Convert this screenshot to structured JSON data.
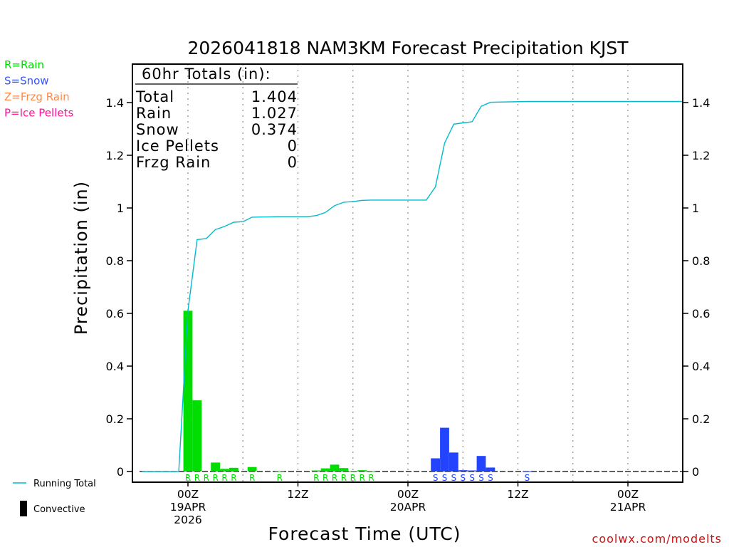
{
  "chart_data": {
    "type": "bar",
    "title": "2026041818 NAM3KM Forecast Precipitation KJST",
    "xlabel": "Forecast Time (UTC)",
    "ylabel": "Precipitation (in)",
    "ylim": [
      0,
      1.55
    ],
    "y_ticks": [
      {
        "value": 0,
        "label": "0"
      },
      {
        "value": 0.2,
        "label": "0.2"
      },
      {
        "value": 0.4,
        "label": "0.4"
      },
      {
        "value": 0.6,
        "label": "0.6"
      },
      {
        "value": 0.8,
        "label": "0.8"
      },
      {
        "value": 1.0,
        "label": "1"
      },
      {
        "value": 1.2,
        "label": "1.2"
      },
      {
        "value": 1.4,
        "label": "1.4"
      }
    ],
    "x_unit": "hours since 19APR 00Z",
    "xlim": [
      -6.2,
      54
    ],
    "x_ticks": [
      {
        "hour": 0,
        "lines": [
          "00Z",
          "19APR",
          "2026"
        ]
      },
      {
        "hour": 12,
        "lines": [
          "12Z"
        ]
      },
      {
        "hour": 24,
        "lines": [
          "00Z",
          "20APR"
        ]
      },
      {
        "hour": 36,
        "lines": [
          "12Z"
        ]
      },
      {
        "hour": 48,
        "lines": [
          "00Z",
          "21APR"
        ]
      }
    ],
    "grid": "vertical dotted at 6-hourly steps",
    "totals": {
      "header": "60hr Totals (in):",
      "rows": [
        {
          "label": "Total",
          "value": "1.404"
        },
        {
          "label": "Rain",
          "value": "1.027"
        },
        {
          "label": "Snow",
          "value": "0.374"
        },
        {
          "label": "Ice Pellets",
          "value": "0"
        },
        {
          "label": "Frzg Rain",
          "value": "0"
        }
      ]
    },
    "precip_type_legend": [
      {
        "label": "R=Rain",
        "color": "#00dd00"
      },
      {
        "label": "S=Snow",
        "color": "#3355ff"
      },
      {
        "label": "Z=Frzg Rain",
        "color": "#ff8844"
      },
      {
        "label": "P=Ice Pellets",
        "color": "#ff1493"
      }
    ],
    "series_legend": [
      {
        "label": "Running Total",
        "kind": "line",
        "color": "#00bbcc"
      },
      {
        "label": "Convective",
        "kind": "bar",
        "color": "#000000"
      }
    ],
    "bars": [
      {
        "hour": 0,
        "value": 0.61,
        "type": "rain"
      },
      {
        "hour": 1,
        "value": 0.27,
        "type": "rain"
      },
      {
        "hour": 2,
        "value": 0.0,
        "type": "rain"
      },
      {
        "hour": 3,
        "value": 0.034,
        "type": "rain"
      },
      {
        "hour": 4,
        "value": 0.01,
        "type": "rain"
      },
      {
        "hour": 5,
        "value": 0.014,
        "type": "rain"
      },
      {
        "hour": 7,
        "value": 0.017,
        "type": "rain"
      },
      {
        "hour": 10,
        "value": 0.002,
        "type": "rain"
      },
      {
        "hour": 14,
        "value": 0.004,
        "type": "rain"
      },
      {
        "hour": 15,
        "value": 0.012,
        "type": "rain"
      },
      {
        "hour": 16,
        "value": 0.026,
        "type": "rain"
      },
      {
        "hour": 17,
        "value": 0.013,
        "type": "rain"
      },
      {
        "hour": 18,
        "value": 0.002,
        "type": "rain"
      },
      {
        "hour": 19,
        "value": 0.005,
        "type": "rain"
      },
      {
        "hour": 20,
        "value": 0.002,
        "type": "rain"
      },
      {
        "hour": 27,
        "value": 0.05,
        "type": "snow"
      },
      {
        "hour": 28,
        "value": 0.166,
        "type": "snow"
      },
      {
        "hour": 29,
        "value": 0.072,
        "type": "snow"
      },
      {
        "hour": 30,
        "value": 0.005,
        "type": "snow"
      },
      {
        "hour": 31,
        "value": 0.004,
        "type": "snow"
      },
      {
        "hour": 32,
        "value": 0.059,
        "type": "snow"
      },
      {
        "hour": 33,
        "value": 0.015,
        "type": "snow"
      },
      {
        "hour": 37,
        "value": 0.001,
        "type": "snow"
      }
    ],
    "type_markers": [
      {
        "hour": 0,
        "letter": "R",
        "type": "rain"
      },
      {
        "hour": 1,
        "letter": "R",
        "type": "rain"
      },
      {
        "hour": 2,
        "letter": "R",
        "type": "rain"
      },
      {
        "hour": 3,
        "letter": "R",
        "type": "rain"
      },
      {
        "hour": 4,
        "letter": "R",
        "type": "rain"
      },
      {
        "hour": 5,
        "letter": "R",
        "type": "rain"
      },
      {
        "hour": 7,
        "letter": "R",
        "type": "rain"
      },
      {
        "hour": 10,
        "letter": "R",
        "type": "rain"
      },
      {
        "hour": 14,
        "letter": "R",
        "type": "rain"
      },
      {
        "hour": 15,
        "letter": "R",
        "type": "rain"
      },
      {
        "hour": 16,
        "letter": "R",
        "type": "rain"
      },
      {
        "hour": 17,
        "letter": "R",
        "type": "rain"
      },
      {
        "hour": 18,
        "letter": "R",
        "type": "rain"
      },
      {
        "hour": 19,
        "letter": "R",
        "type": "rain"
      },
      {
        "hour": 20,
        "letter": "R",
        "type": "rain"
      },
      {
        "hour": 27,
        "letter": "S",
        "type": "snow"
      },
      {
        "hour": 28,
        "letter": "S",
        "type": "snow"
      },
      {
        "hour": 29,
        "letter": "S",
        "type": "snow"
      },
      {
        "hour": 30,
        "letter": "S",
        "type": "snow"
      },
      {
        "hour": 31,
        "letter": "S",
        "type": "snow"
      },
      {
        "hour": 32,
        "letter": "S",
        "type": "snow"
      },
      {
        "hour": 33,
        "letter": "S",
        "type": "snow"
      },
      {
        "hour": 37,
        "letter": "S",
        "type": "snow"
      }
    ],
    "running_total": [
      {
        "hour": -5,
        "value": 0
      },
      {
        "hour": -1,
        "value": 0
      },
      {
        "hour": 0,
        "value": 0.61
      },
      {
        "hour": 1,
        "value": 0.88
      },
      {
        "hour": 2,
        "value": 0.884
      },
      {
        "hour": 3,
        "value": 0.918
      },
      {
        "hour": 4,
        "value": 0.93
      },
      {
        "hour": 5,
        "value": 0.946
      },
      {
        "hour": 6,
        "value": 0.948
      },
      {
        "hour": 7,
        "value": 0.965
      },
      {
        "hour": 10,
        "value": 0.967
      },
      {
        "hour": 13,
        "value": 0.967
      },
      {
        "hour": 14,
        "value": 0.971
      },
      {
        "hour": 15,
        "value": 0.983
      },
      {
        "hour": 16,
        "value": 1.009
      },
      {
        "hour": 17,
        "value": 1.022
      },
      {
        "hour": 18,
        "value": 1.024
      },
      {
        "hour": 19,
        "value": 1.029
      },
      {
        "hour": 20,
        "value": 1.03
      },
      {
        "hour": 26,
        "value": 1.03
      },
      {
        "hour": 27,
        "value": 1.08
      },
      {
        "hour": 28,
        "value": 1.246
      },
      {
        "hour": 29,
        "value": 1.318
      },
      {
        "hour": 30,
        "value": 1.323
      },
      {
        "hour": 31,
        "value": 1.327
      },
      {
        "hour": 32,
        "value": 1.386
      },
      {
        "hour": 33,
        "value": 1.401
      },
      {
        "hour": 37,
        "value": 1.404
      },
      {
        "hour": 54,
        "value": 1.404
      }
    ],
    "colors": {
      "rain": "#00dd00",
      "snow": "#2244ff",
      "running_total": "#00bbcc",
      "grid": "#999999"
    }
  },
  "watermark": "coolwx.com/modelts"
}
